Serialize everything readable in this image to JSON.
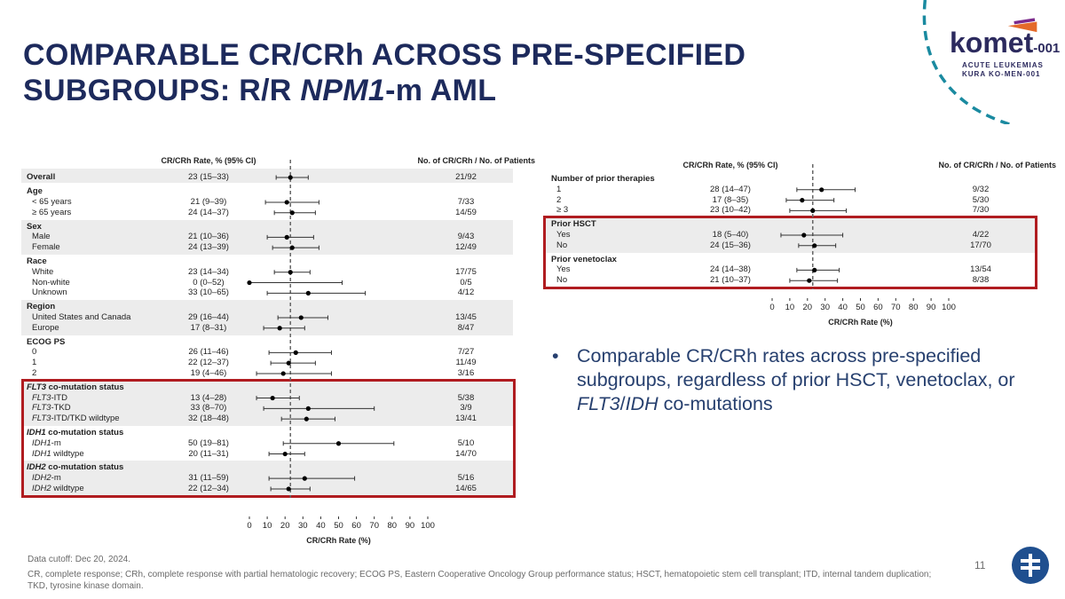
{
  "title": {
    "line1": "COMPARABLE CR/CRh ACROSS PRE-SPECIFIED",
    "line2_pre": "SUBGROUPS: R/R ",
    "line2_italic": "NPM1",
    "line2_post": "-m AML"
  },
  "logo": {
    "name": "komet",
    "suffix": "-001",
    "sub1": "ACUTE LEUKEMIAS",
    "sub2": "KURA KO-MEN-001"
  },
  "bullet": {
    "pre": "Comparable CR/CRh rates across pre-specified subgroups, regardless of prior HSCT, venetoclax, or ",
    "i1": "FLT3",
    "sep": "/",
    "i2": "IDH",
    "post": " co-mutations"
  },
  "footer": {
    "cutoff": "Data cutoff: Dec 20, 2024.",
    "abbrev": "CR, complete response; CRh, complete response with partial hematologic recovery; ECOG PS, Eastern Cooperative Oncology Group performance status; HSCT, hematopoietic stem cell transplant; ITD, internal tandem duplication; TKD, tyrosine kinase domain."
  },
  "page_number": "11",
  "colors": {
    "title": "#1d2a5c",
    "highlight_box": "#b01c20",
    "band": "#ececec",
    "bullet": "#27406f",
    "logo_dash": "#1a8aa0"
  },
  "chart_data": [
    {
      "type": "forest",
      "col_rate": "CR/CRh Rate, % (95% CI)",
      "col_count": "No. of CR/CRh / No. of Patients",
      "xlabel": "CR/CRh Rate (%)",
      "xlim": [
        0,
        100
      ],
      "xticks": [
        0,
        10,
        20,
        30,
        40,
        50,
        60,
        70,
        80,
        90,
        100
      ],
      "reference_line": 23,
      "groups": [
        {
          "label": "Overall",
          "shaded": true,
          "rows": [
            {
              "label": "",
              "rate": "23 (15–33)",
              "est": 23,
              "lo": 15,
              "hi": 33,
              "count": "21/92"
            }
          ],
          "inline": true
        },
        {
          "label": "Age",
          "shaded": false,
          "rows": [
            {
              "label": "< 65 years",
              "rate": "21 (9–39)",
              "est": 21,
              "lo": 9,
              "hi": 39,
              "count": "7/33"
            },
            {
              "label": "≥ 65 years",
              "rate": "24 (14–37)",
              "est": 24,
              "lo": 14,
              "hi": 37,
              "count": "14/59"
            }
          ]
        },
        {
          "label": "Sex",
          "shaded": true,
          "rows": [
            {
              "label": "Male",
              "rate": "21 (10–36)",
              "est": 21,
              "lo": 10,
              "hi": 36,
              "count": "9/43"
            },
            {
              "label": "Female",
              "rate": "24 (13–39)",
              "est": 24,
              "lo": 13,
              "hi": 39,
              "count": "12/49"
            }
          ]
        },
        {
          "label": "Race",
          "shaded": false,
          "rows": [
            {
              "label": "White",
              "rate": "23 (14–34)",
              "est": 23,
              "lo": 14,
              "hi": 34,
              "count": "17/75"
            },
            {
              "label": "Non-white",
              "rate": "0 (0–52)",
              "est": 0,
              "lo": 0,
              "hi": 52,
              "count": "0/5"
            },
            {
              "label": "Unknown",
              "rate": "33 (10–65)",
              "est": 33,
              "lo": 10,
              "hi": 65,
              "count": "4/12"
            }
          ]
        },
        {
          "label": "Region",
          "shaded": true,
          "rows": [
            {
              "label": "United States and Canada",
              "rate": "29 (16–44)",
              "est": 29,
              "lo": 16,
              "hi": 44,
              "count": "13/45"
            },
            {
              "label": "Europe",
              "rate": "17 (8–31)",
              "est": 17,
              "lo": 8,
              "hi": 31,
              "count": "8/47"
            }
          ]
        },
        {
          "label": "ECOG PS",
          "shaded": false,
          "rows": [
            {
              "label": "0",
              "rate": "26 (11–46)",
              "est": 26,
              "lo": 11,
              "hi": 46,
              "count": "7/27"
            },
            {
              "label": "1",
              "rate": "22 (12–37)",
              "est": 22,
              "lo": 12,
              "hi": 37,
              "count": "11/49"
            },
            {
              "label": "2",
              "rate": "19 (4–46)",
              "est": 19,
              "lo": 4,
              "hi": 46,
              "count": "3/16"
            }
          ]
        },
        {
          "label": " co-mutation status",
          "italic": "FLT3",
          "shaded": true,
          "highlight": true,
          "rows": [
            {
              "italic": "FLT3",
              "label": "-ITD",
              "rate": "13 (4–28)",
              "est": 13,
              "lo": 4,
              "hi": 28,
              "count": "5/38"
            },
            {
              "italic": "FLT3",
              "label": "-TKD",
              "rate": "33 (8–70)",
              "est": 33,
              "lo": 8,
              "hi": 70,
              "count": "3/9"
            },
            {
              "italic": "FLT3",
              "label": "-ITD/TKD wildtype",
              "rate": "32 (18–48)",
              "est": 32,
              "lo": 18,
              "hi": 48,
              "count": "13/41"
            }
          ]
        },
        {
          "label": " co-mutation status",
          "italic": "IDH1",
          "shaded": false,
          "highlight": true,
          "rows": [
            {
              "italic": "IDH1",
              "label": "-m",
              "rate": "50 (19–81)",
              "est": 50,
              "lo": 19,
              "hi": 81,
              "count": "5/10"
            },
            {
              "italic": "IDH1",
              "label": " wildtype",
              "rate": "20 (11–31)",
              "est": 20,
              "lo": 11,
              "hi": 31,
              "count": "14/70"
            }
          ]
        },
        {
          "label": " co-mutation status",
          "italic": "IDH2",
          "shaded": true,
          "highlight": true,
          "rows": [
            {
              "italic": "IDH2",
              "label": "-m",
              "rate": "31 (11–59)",
              "est": 31,
              "lo": 11,
              "hi": 59,
              "count": "5/16"
            },
            {
              "italic": "IDH2",
              "label": " wildtype",
              "rate": "22 (12–34)",
              "est": 22,
              "lo": 12,
              "hi": 34,
              "count": "14/65"
            }
          ]
        }
      ]
    },
    {
      "type": "forest",
      "col_rate": "CR/CRh Rate, % (95% CI)",
      "col_count": "No. of CR/CRh / No. of Patients",
      "xlabel": "CR/CRh Rate (%)",
      "xlim": [
        0,
        100
      ],
      "xticks": [
        0,
        10,
        20,
        30,
        40,
        50,
        60,
        70,
        80,
        90,
        100
      ],
      "reference_line": 23,
      "groups": [
        {
          "label": "Number of prior therapies",
          "shaded": false,
          "rows": [
            {
              "label": "1",
              "rate": "28 (14–47)",
              "est": 28,
              "lo": 14,
              "hi": 47,
              "count": "9/32"
            },
            {
              "label": "2",
              "rate": "17 (8–35)",
              "est": 17,
              "lo": 8,
              "hi": 35,
              "count": "5/30"
            },
            {
              "label": "≥ 3",
              "rate": "23 (10–42)",
              "est": 23,
              "lo": 10,
              "hi": 42,
              "count": "7/30"
            }
          ]
        },
        {
          "label": "Prior HSCT",
          "shaded": true,
          "highlight": true,
          "rows": [
            {
              "label": "Yes",
              "rate": "18 (5–40)",
              "est": 18,
              "lo": 5,
              "hi": 40,
              "count": "4/22"
            },
            {
              "label": "No",
              "rate": "24 (15–36)",
              "est": 24,
              "lo": 15,
              "hi": 36,
              "count": "17/70"
            }
          ]
        },
        {
          "label": "Prior venetoclax",
          "shaded": false,
          "highlight": true,
          "rows": [
            {
              "label": "Yes",
              "rate": "24 (14–38)",
              "est": 24,
              "lo": 14,
              "hi": 38,
              "count": "13/54"
            },
            {
              "label": "No",
              "rate": "21 (10–37)",
              "est": 21,
              "lo": 10,
              "hi": 37,
              "count": "8/38"
            }
          ]
        }
      ]
    }
  ]
}
